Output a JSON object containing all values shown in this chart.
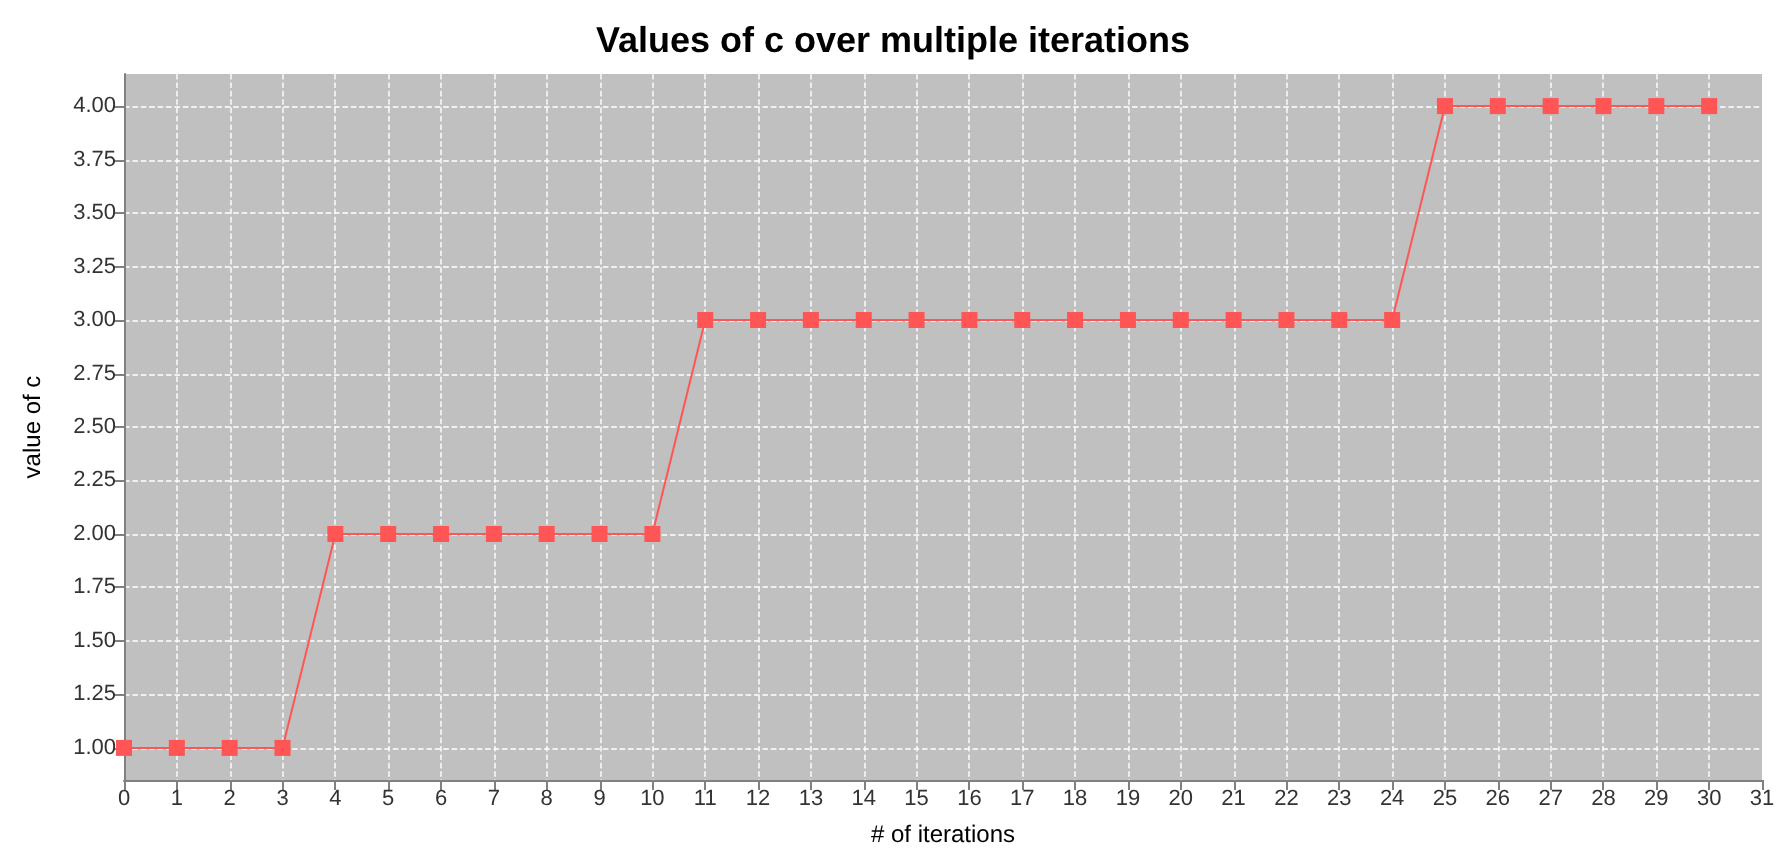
{
  "chart_data": {
    "type": "line",
    "title": "Values of c over multiple iterations",
    "xlabel": "# of iterations",
    "ylabel": "value of c",
    "x": [
      0,
      1,
      2,
      3,
      4,
      5,
      6,
      7,
      8,
      9,
      10,
      11,
      12,
      13,
      14,
      15,
      16,
      17,
      18,
      19,
      20,
      21,
      22,
      23,
      24,
      25,
      26,
      27,
      28,
      29,
      30
    ],
    "series": [
      {
        "color": "#ff5555",
        "values": [
          1,
          1,
          1,
          1,
          2,
          2,
          2,
          2,
          2,
          2,
          2,
          3,
          3,
          3,
          3,
          3,
          3,
          3,
          3,
          3,
          3,
          3,
          3,
          3,
          3,
          4,
          4,
          4,
          4,
          4,
          4
        ]
      }
    ],
    "xlim": [
      0,
      31
    ],
    "xticks": [
      0,
      1,
      2,
      3,
      4,
      5,
      6,
      7,
      8,
      9,
      10,
      11,
      12,
      13,
      14,
      15,
      16,
      17,
      18,
      19,
      20,
      21,
      22,
      23,
      24,
      25,
      26,
      27,
      28,
      29,
      30,
      31
    ],
    "ylim": [
      0.85,
      4.15
    ],
    "yticks": [
      {
        "value": 1,
        "label": "1.00"
      },
      {
        "value": 1.25,
        "label": "1.25"
      },
      {
        "value": 1.5,
        "label": "1.50"
      },
      {
        "value": 1.75,
        "label": "1.75"
      },
      {
        "value": 2,
        "label": "2.00"
      },
      {
        "value": 2.25,
        "label": "2.25"
      },
      {
        "value": 2.5,
        "label": "2.50"
      },
      {
        "value": 2.75,
        "label": "2.75"
      },
      {
        "value": 3,
        "label": "3.00"
      },
      {
        "value": 3.25,
        "label": "3.25"
      },
      {
        "value": 3.5,
        "label": "3.50"
      },
      {
        "value": 3.75,
        "label": "3.75"
      },
      {
        "value": 4,
        "label": "4.00"
      }
    ],
    "grid": true,
    "marker": "square",
    "line_style": "solid"
  }
}
